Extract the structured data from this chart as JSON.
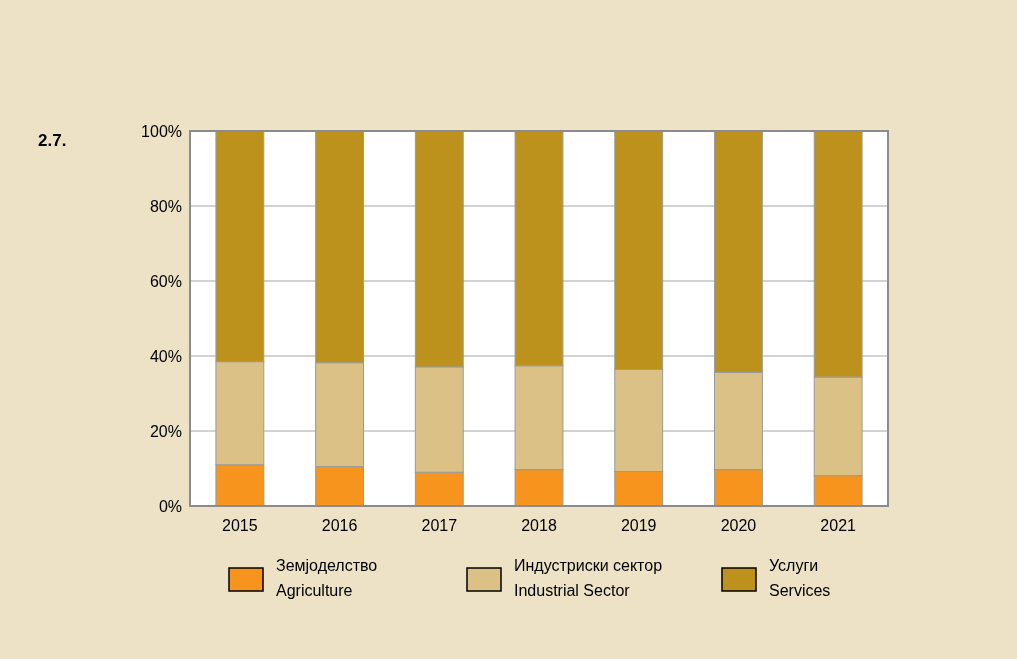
{
  "chart_data": {
    "type": "bar",
    "title": "2.7.",
    "stacked": true,
    "categories": [
      "2015",
      "2016",
      "2017",
      "2018",
      "2019",
      "2020",
      "2021"
    ],
    "series": [
      {
        "name": "Земјоделство\nAgriculture",
        "color": "#f7941d",
        "values": [
          11.0,
          10.5,
          9.0,
          9.7,
          9.2,
          9.7,
          8.1
        ]
      },
      {
        "name": "Индустриски сектор\nIndustrial Sector",
        "color": "#dbc186",
        "values": [
          27.5,
          27.7,
          28.1,
          27.7,
          27.2,
          25.9,
          26.3
        ]
      },
      {
        "name": "Услуги\nServices",
        "color": "#bd921c",
        "values": [
          61.5,
          61.8,
          62.9,
          62.6,
          63.6,
          64.4,
          65.6
        ]
      }
    ],
    "ylim": [
      0,
      100
    ],
    "yticks": [
      {
        "value": 0,
        "label": "0%"
      },
      {
        "value": 20,
        "label": "20%"
      },
      {
        "value": 40,
        "label": "40%"
      },
      {
        "value": 60,
        "label": "60%"
      },
      {
        "value": 80,
        "label": "80%"
      },
      {
        "value": 100,
        "label": "100%"
      }
    ],
    "grid": "y",
    "legend": "bottom"
  }
}
